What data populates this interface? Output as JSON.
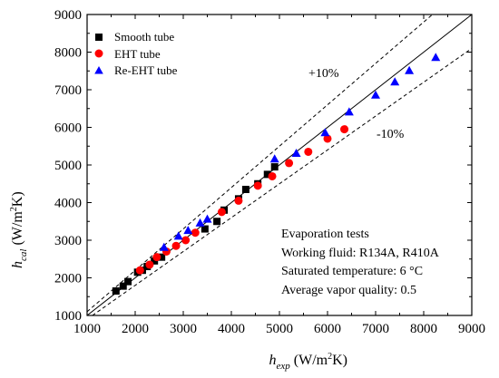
{
  "chart_data": {
    "type": "scatter",
    "xlabel": {
      "main": "h",
      "sub": "exp",
      "unit_pre": " (W/m",
      "unit_sup": "2",
      "unit_post": "K)"
    },
    "ylabel": {
      "main": "h",
      "sub": "cal",
      "unit_pre": " (W/m",
      "unit_sup": "2",
      "unit_post": "K)"
    },
    "xlim": [
      1000,
      9000
    ],
    "ylim": [
      1000,
      9000
    ],
    "xticks": [
      "1000",
      "2000",
      "3000",
      "4000",
      "5000",
      "6000",
      "7000",
      "8000",
      "9000"
    ],
    "yticks": [
      "1000",
      "2000",
      "3000",
      "4000",
      "5000",
      "6000",
      "7000",
      "8000",
      "9000"
    ],
    "grid": false,
    "legend_position": "top-left",
    "reference_lines": [
      {
        "label": "",
        "factor": 1.0,
        "style": "solid"
      },
      {
        "label": "+10%",
        "factor": 1.1,
        "style": "dashed"
      },
      {
        "label": "-10%",
        "factor": 0.9,
        "style": "dashed"
      }
    ],
    "series": [
      {
        "name": "Smooth tube",
        "marker": "square",
        "color": "#000000",
        "points": [
          [
            1600,
            1650
          ],
          [
            1750,
            1780
          ],
          [
            1850,
            1900
          ],
          [
            2050,
            2150
          ],
          [
            2150,
            2200
          ],
          [
            2250,
            2300
          ],
          [
            2400,
            2450
          ],
          [
            2550,
            2550
          ],
          [
            3450,
            3300
          ],
          [
            3700,
            3500
          ],
          [
            3850,
            3800
          ],
          [
            4150,
            4100
          ],
          [
            4300,
            4350
          ],
          [
            4550,
            4500
          ],
          [
            4750,
            4750
          ],
          [
            4900,
            4950
          ]
        ]
      },
      {
        "name": "EHT tube",
        "marker": "circle",
        "color": "#ff0000",
        "points": [
          [
            2100,
            2200
          ],
          [
            2300,
            2350
          ],
          [
            2450,
            2550
          ],
          [
            2650,
            2700
          ],
          [
            2850,
            2850
          ],
          [
            3050,
            3000
          ],
          [
            3250,
            3200
          ],
          [
            3800,
            3750
          ],
          [
            4150,
            4050
          ],
          [
            4550,
            4450
          ],
          [
            4850,
            4700
          ],
          [
            5200,
            5050
          ],
          [
            5600,
            5350
          ],
          [
            6000,
            5700
          ],
          [
            6350,
            5950
          ]
        ]
      },
      {
        "name": "Re-EHT tube",
        "marker": "triangle",
        "color": "#0000ff",
        "points": [
          [
            2600,
            2800
          ],
          [
            2900,
            3100
          ],
          [
            3100,
            3250
          ],
          [
            3350,
            3450
          ],
          [
            3500,
            3550
          ],
          [
            4900,
            5150
          ],
          [
            5350,
            5300
          ],
          [
            5950,
            5850
          ],
          [
            6450,
            6400
          ],
          [
            7000,
            6850
          ],
          [
            7400,
            7200
          ],
          [
            7700,
            7500
          ],
          [
            8250,
            7850
          ]
        ]
      }
    ],
    "annotations": {
      "plus_label": "+10%",
      "minus_label": "-10%",
      "text_lines": [
        "Evaporation tests",
        "Working fluid: R134A, R410A",
        "Saturated temperature: 6 °C",
        "Average vapor quality: 0.5"
      ]
    }
  }
}
